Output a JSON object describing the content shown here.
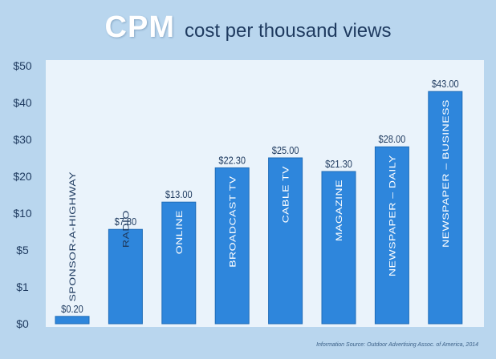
{
  "header": {
    "title": "CPM",
    "subtitle": "cost per thousand views"
  },
  "footer": {
    "source": "Information Source: Outdoor Advertising Assoc. of America, 2014"
  },
  "colors": {
    "background": "#b9d6ee",
    "plot_area": "#eaf3fb",
    "bar": "#2e86dc",
    "bar_edge": "#1f6cb8",
    "label_dark": "#1e3a5f",
    "title": "#ffffff"
  },
  "chart_data": {
    "type": "bar",
    "title": "CPM",
    "subtitle": "cost per thousand views",
    "xlabel": "",
    "ylabel": "",
    "y_scale": "non-linear (tick labels evenly spaced)",
    "y_ticks": [
      "$0",
      "$1",
      "$5",
      "$10",
      "$20",
      "$30",
      "$40",
      "$50"
    ],
    "y_tick_values": [
      0,
      1,
      5,
      10,
      20,
      30,
      40,
      50
    ],
    "grid": false,
    "categories": [
      "SPONSOR-A-HIGHWAY",
      "RADIO",
      "ONLINE",
      "BROADCAST TV",
      "CABLE TV",
      "MAGAZINE",
      "NEWSPAPER – DAILY",
      "NEWSPAPER – BUSINESS"
    ],
    "values": [
      0.2,
      7.8,
      13.0,
      22.3,
      25.0,
      21.3,
      28.0,
      43.0
    ],
    "value_labels": [
      "$0.20",
      "$7.80",
      "$13.00",
      "$22.30",
      "$25.00",
      "$21.30",
      "$28.00",
      "$43.00"
    ]
  }
}
